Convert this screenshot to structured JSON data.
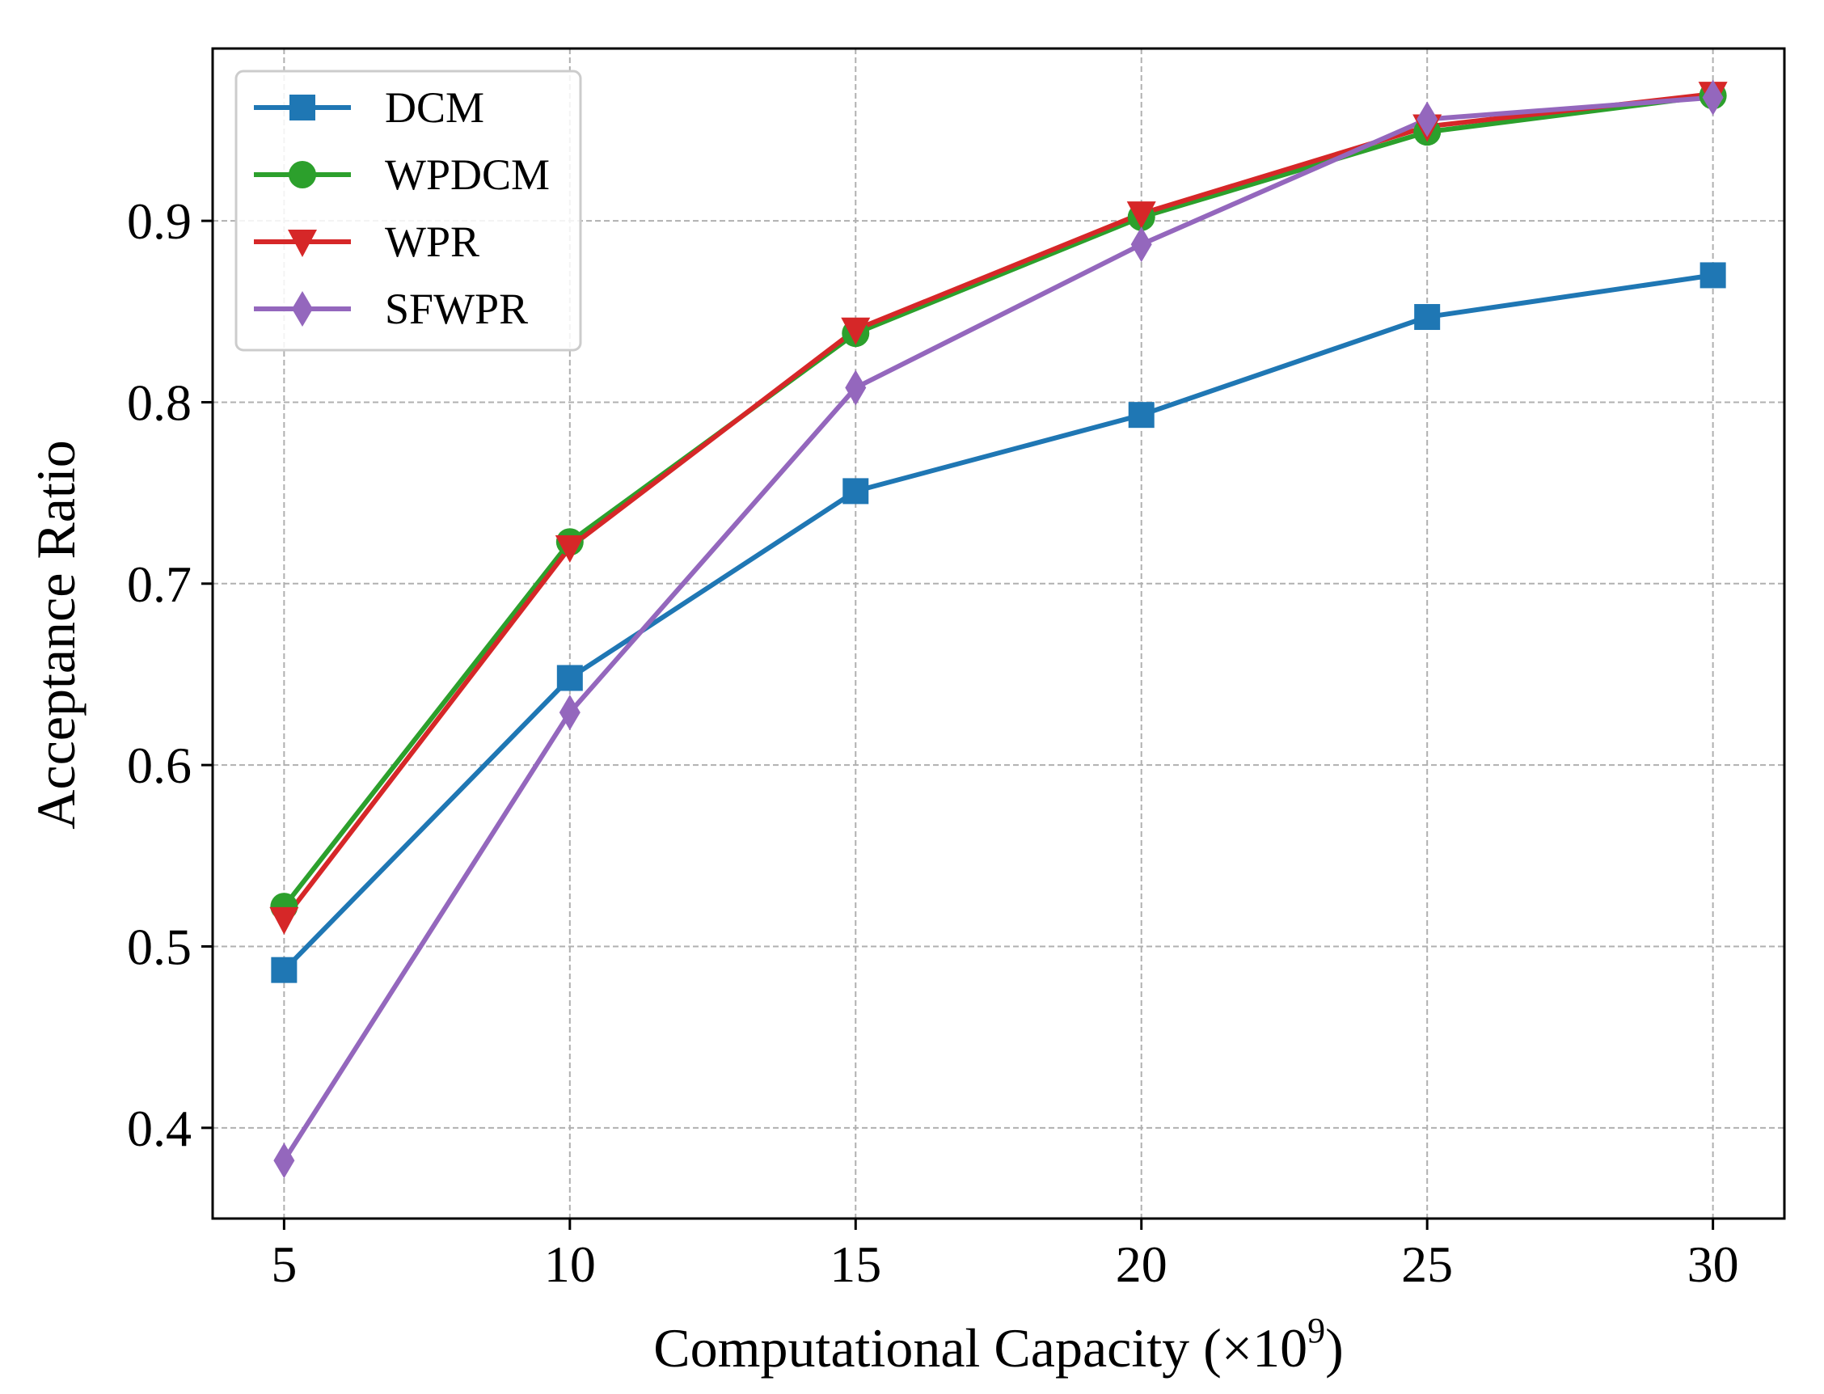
{
  "chart_data": {
    "type": "line",
    "title": "",
    "xlabel": "Computational Capacity (",
    "xlabel_factor": "×10",
    "xlabel_exponent": "9",
    "xlabel_close": ")",
    "ylabel": "Acceptance Ratio",
    "x": [
      5,
      10,
      15,
      20,
      25,
      30
    ],
    "x_tick_labels": [
      "5",
      "10",
      "15",
      "20",
      "25",
      "30"
    ],
    "y_ticks": [
      0.4,
      0.5,
      0.6,
      0.7,
      0.8,
      0.9
    ],
    "y_tick_labels": [
      "0.4",
      "0.5",
      "0.6",
      "0.7",
      "0.8",
      "0.9"
    ],
    "xlim": [
      3.75,
      31.25
    ],
    "ylim": [
      0.35,
      0.995
    ],
    "grid": true,
    "legend_position": "top-left",
    "series": [
      {
        "name": "DCM",
        "color": "#1f77b4",
        "marker": "square",
        "values": [
          0.487,
          0.648,
          0.751,
          0.793,
          0.847,
          0.87
        ]
      },
      {
        "name": "WPDCM",
        "color": "#2ca02c",
        "marker": "circle",
        "values": [
          0.522,
          0.723,
          0.838,
          0.902,
          0.949,
          0.969
        ]
      },
      {
        "name": "WPR",
        "color": "#d62728",
        "marker": "triangle-down",
        "values": [
          0.515,
          0.72,
          0.84,
          0.904,
          0.952,
          0.97
        ]
      },
      {
        "name": "SFWPR",
        "color": "#9467bd",
        "marker": "diamond",
        "values": [
          0.382,
          0.629,
          0.808,
          0.887,
          0.956,
          0.968
        ]
      }
    ]
  }
}
